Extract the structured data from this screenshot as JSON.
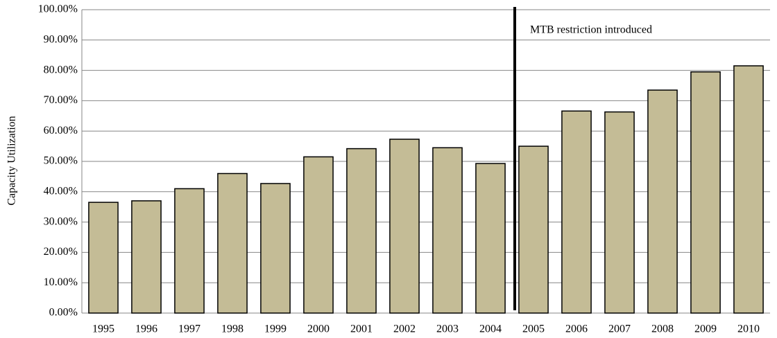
{
  "chart_data": {
    "type": "bar",
    "y_label": "Capacity Utilization",
    "annotation": "MTB restriction introduced",
    "categories": [
      "1995",
      "1996",
      "1997",
      "1998",
      "1999",
      "2000",
      "2001",
      "2002",
      "2003",
      "2004",
      "2005",
      "2006",
      "2007",
      "2008",
      "2009",
      "2010"
    ],
    "values": [
      36.5,
      37,
      41,
      46,
      42.7,
      51.5,
      54.2,
      57.3,
      54.5,
      49.3,
      55,
      66.6,
      66.3,
      73.5,
      79.5,
      81.5
    ],
    "color": "#c4bc96",
    "ylim": [
      0,
      100
    ],
    "yticks": [
      {
        "value": 0,
        "label": "0.00%"
      },
      {
        "value": 10,
        "label": "10.00%"
      },
      {
        "value": 20,
        "label": "20.00%"
      },
      {
        "value": 30,
        "label": "30.00%"
      },
      {
        "value": 40,
        "label": "40.00%"
      },
      {
        "value": 50,
        "label": "50.00%"
      },
      {
        "value": 60,
        "label": "60.00%"
      },
      {
        "value": 70,
        "label": "70.00%"
      },
      {
        "value": 80,
        "label": "80.00%"
      },
      {
        "value": 90,
        "label": "90.00%"
      },
      {
        "value": 100,
        "label": "100.00%"
      }
    ],
    "grid": true
  }
}
